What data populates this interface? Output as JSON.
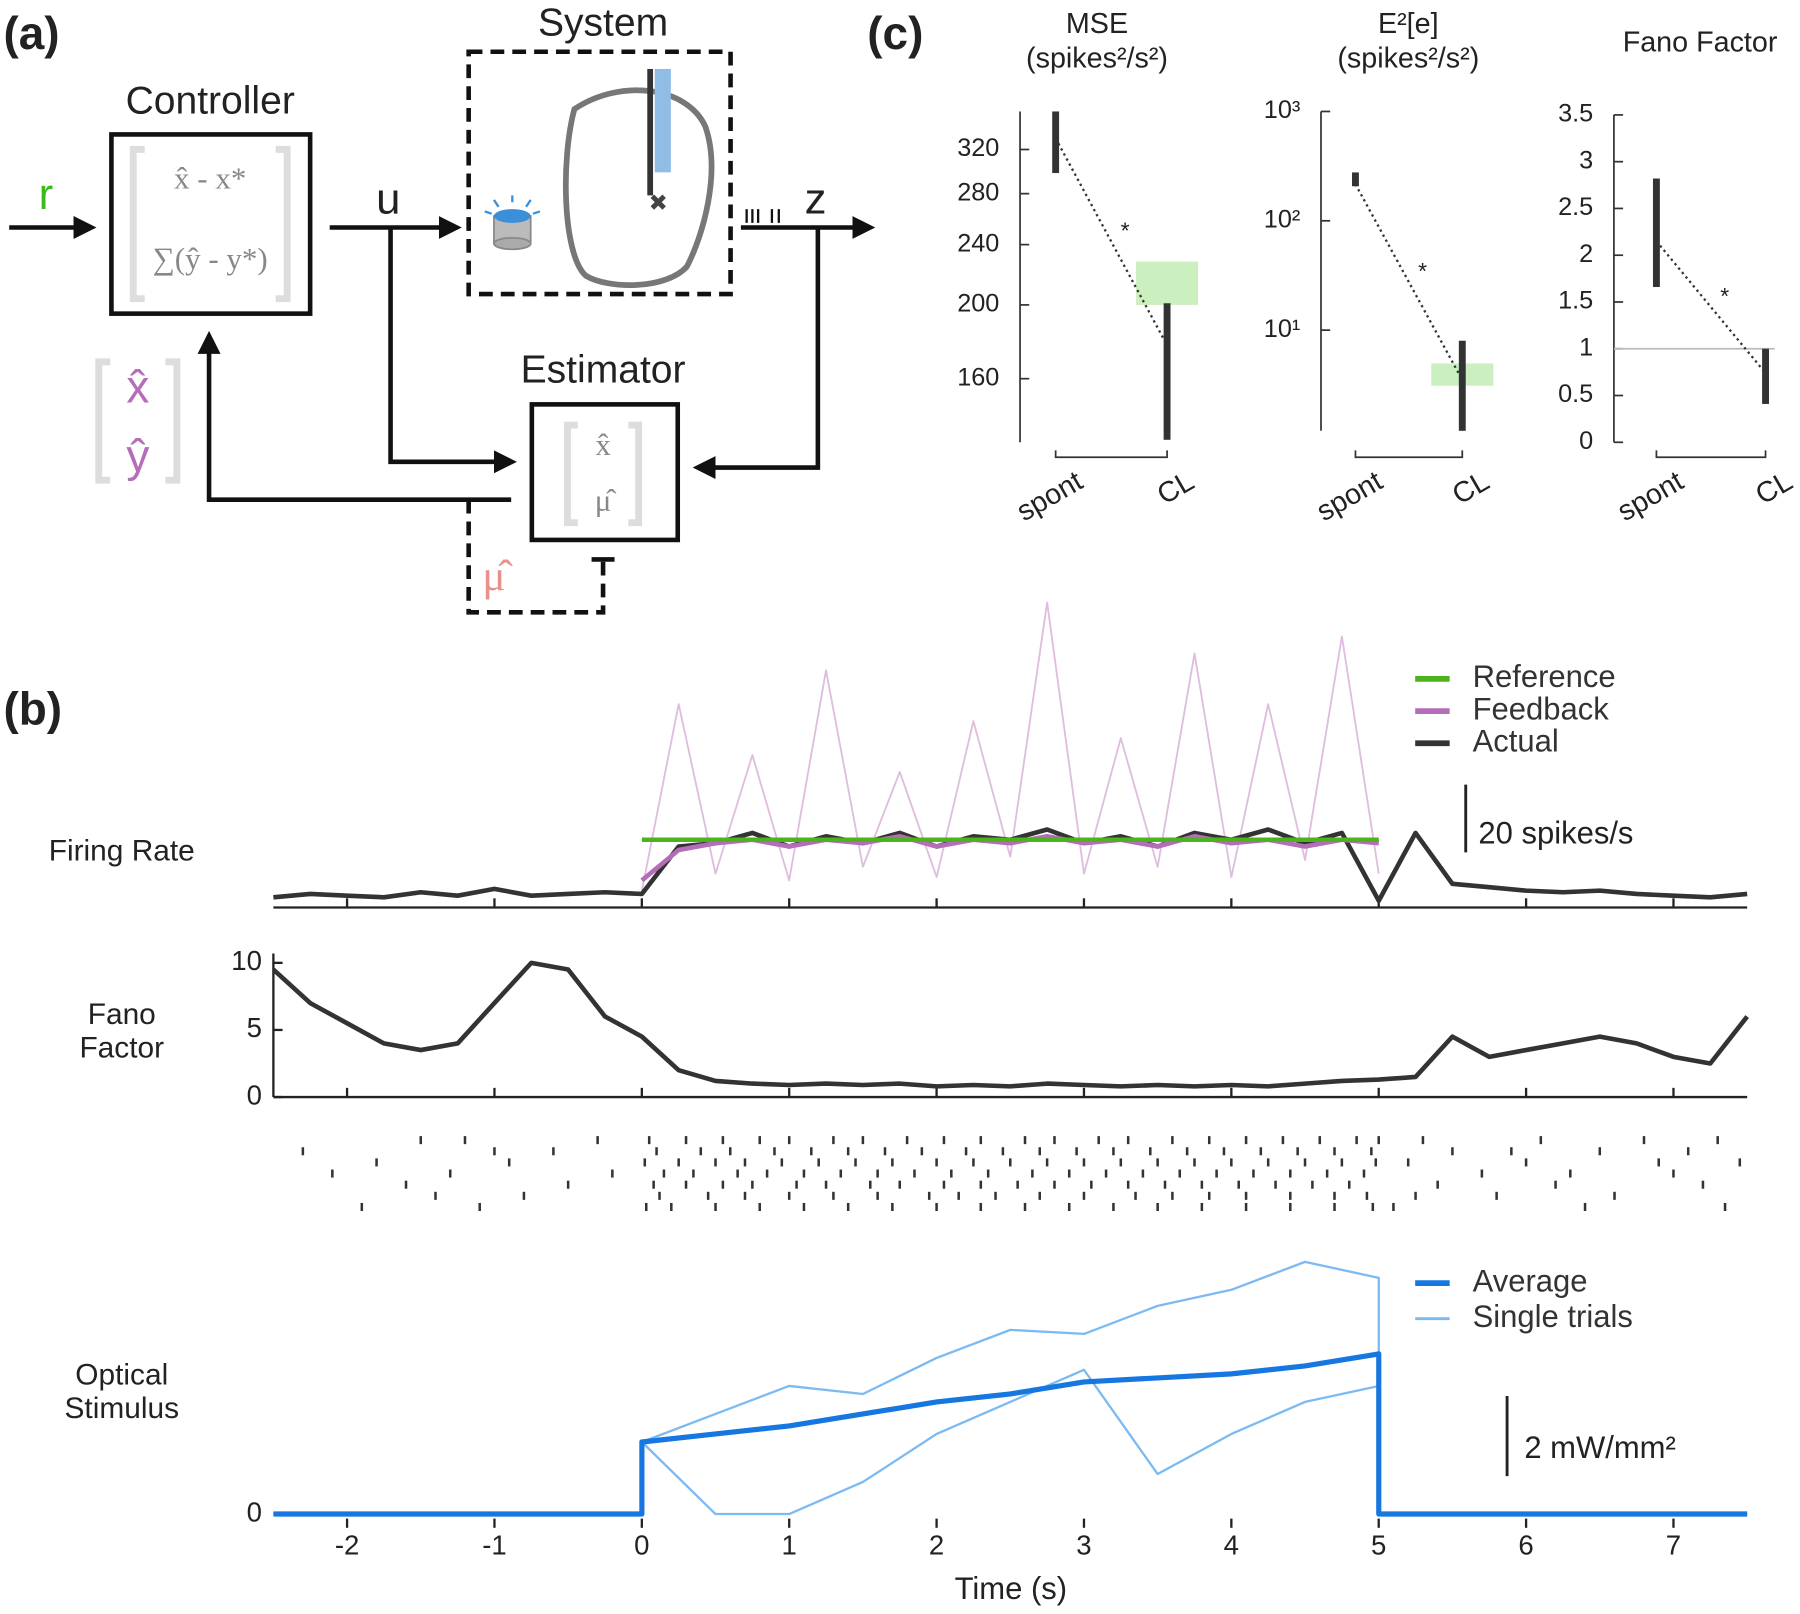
{
  "panel_labels": {
    "a": "(a)",
    "b": "(b)",
    "c": "(c)"
  },
  "diagram": {
    "controller": {
      "title": "Controller",
      "rows": [
        "x̂ - x*",
        "∑(ŷ - y*)"
      ]
    },
    "system": {
      "title": "System"
    },
    "estimator": {
      "title": "Estimator",
      "rows": [
        "x̂",
        "μ̂"
      ]
    },
    "signals": {
      "r": "r",
      "u": "u",
      "z": "z"
    },
    "state_feedback": [
      "x̂",
      "ŷ"
    ],
    "parameter_feedback": "μ̂"
  },
  "chart_data": [
    {
      "type": "line",
      "ylabel": [
        "Firing Rate"
      ],
      "legend": "upper right",
      "ylim": [
        0,
        100
      ],
      "scale_bar": {
        "value": 20,
        "label": "20 spikes/s"
      },
      "x": [
        -2.5,
        -2.25,
        -2,
        -1.75,
        -1.5,
        -1.25,
        -1,
        -0.75,
        -0.5,
        -0.25,
        0,
        0.25,
        0.5,
        0.75,
        1,
        1.25,
        1.5,
        1.75,
        2,
        2.25,
        2.5,
        2.75,
        3,
        3.25,
        3.5,
        3.75,
        4,
        4.25,
        4.5,
        4.75,
        5,
        5.25,
        5.5,
        5.75,
        6,
        6.25,
        6.5,
        6.75,
        7,
        7.25,
        7.5
      ],
      "series": [
        {
          "name": "Reference",
          "color": "#4db31c",
          "values": [
            null,
            null,
            null,
            null,
            null,
            null,
            null,
            null,
            null,
            null,
            20,
            20,
            20,
            20,
            20,
            20,
            20,
            20,
            20,
            20,
            20,
            20,
            20,
            20,
            20,
            20,
            20,
            20,
            20,
            20,
            20,
            null,
            null,
            null,
            null,
            null,
            null,
            null,
            null,
            null,
            null
          ]
        },
        {
          "name": "Feedback",
          "color": "#b56db9",
          "values": [
            null,
            null,
            null,
            null,
            null,
            null,
            null,
            null,
            null,
            null,
            8,
            17,
            19,
            20,
            18,
            20,
            19,
            21,
            18,
            20,
            19,
            21,
            19,
            20,
            18,
            21,
            19,
            20,
            18,
            20,
            19,
            null,
            null,
            null,
            null,
            null,
            null,
            null,
            null,
            null,
            null
          ],
          "trial_values": [
            null,
            null,
            null,
            null,
            null,
            null,
            null,
            null,
            null,
            null,
            5,
            60,
            10,
            45,
            8,
            70,
            12,
            40,
            9,
            55,
            15,
            90,
            10,
            50,
            12,
            75,
            9,
            60,
            14,
            80,
            10,
            null,
            null,
            null,
            null,
            null,
            null,
            null,
            null,
            null,
            null
          ]
        },
        {
          "name": "Actual",
          "color": "#333333",
          "values": [
            3,
            4,
            3.5,
            3,
            4.5,
            3.5,
            5.5,
            3.5,
            4,
            4.5,
            4,
            18,
            19,
            22,
            18,
            21,
            19,
            22,
            18,
            21,
            20,
            23,
            19,
            21,
            18,
            22,
            20,
            23,
            19,
            22,
            2,
            22,
            7,
            6,
            5,
            4.5,
            5,
            4,
            3.5,
            3,
            4
          ]
        }
      ]
    },
    {
      "type": "line",
      "ylabel": [
        "Fano",
        "Factor"
      ],
      "ylim": [
        0,
        10.7
      ],
      "yticks": [
        0,
        5,
        10
      ],
      "x": [
        -2.5,
        -2.25,
        -2,
        -1.75,
        -1.5,
        -1.25,
        -1,
        -0.75,
        -0.5,
        -0.25,
        0,
        0.25,
        0.5,
        0.75,
        1,
        1.25,
        1.5,
        1.75,
        2,
        2.25,
        2.5,
        2.75,
        3,
        3.25,
        3.5,
        3.75,
        4,
        4.25,
        4.5,
        4.75,
        5,
        5.25,
        5.5,
        5.75,
        6,
        6.25,
        6.5,
        6.75,
        7,
        7.25,
        7.5
      ],
      "series": [
        {
          "color": "#333333",
          "values": [
            9.5,
            7,
            5.5,
            4,
            3.5,
            4,
            7,
            10,
            9.5,
            6,
            4.5,
            2,
            1.2,
            1,
            0.9,
            1,
            0.9,
            1,
            0.8,
            0.9,
            0.8,
            1,
            0.9,
            0.8,
            0.9,
            0.8,
            0.9,
            0.8,
            1,
            1.2,
            1.3,
            1.5,
            4.5,
            3,
            3.5,
            4,
            4.5,
            4,
            3,
            2.5,
            6
          ]
        }
      ]
    },
    {
      "type": "raster",
      "color": "#333333",
      "trials": [
        [
          -1.5,
          -1.2,
          -0.3,
          0.05,
          0.3,
          0.55,
          0.8,
          1.0,
          1.3,
          1.5,
          1.8,
          2.05,
          2.3,
          2.6,
          2.8,
          3.1,
          3.3,
          3.6,
          3.85,
          4.1,
          4.35,
          4.6,
          4.85,
          5.0,
          5.3,
          6.1,
          6.8,
          7.3
        ],
        [
          -2.3,
          -1.0,
          -0.6,
          0.1,
          0.4,
          0.6,
          0.9,
          1.15,
          1.4,
          1.65,
          1.9,
          2.2,
          2.45,
          2.7,
          2.95,
          3.2,
          3.45,
          3.7,
          3.95,
          4.2,
          4.45,
          4.7,
          4.95,
          5.5,
          5.9,
          6.5,
          7.1
        ],
        [
          -1.8,
          -0.9,
          0.02,
          0.25,
          0.5,
          0.7,
          0.95,
          1.2,
          1.45,
          1.7,
          2.0,
          2.25,
          2.5,
          2.75,
          3.0,
          3.25,
          3.5,
          3.75,
          4.0,
          4.25,
          4.5,
          4.75,
          4.98,
          5.2,
          6.0,
          6.9,
          7.45
        ],
        [
          -2.1,
          -1.3,
          -0.2,
          0.15,
          0.35,
          0.65,
          0.85,
          1.1,
          1.35,
          1.6,
          1.85,
          2.1,
          2.35,
          2.65,
          2.9,
          3.15,
          3.4,
          3.65,
          3.9,
          4.15,
          4.4,
          4.65,
          4.9,
          5.7,
          6.3,
          7.0
        ],
        [
          -1.6,
          -0.5,
          0.08,
          0.3,
          0.55,
          0.75,
          1.05,
          1.25,
          1.55,
          1.75,
          2.05,
          2.3,
          2.55,
          2.8,
          3.05,
          3.3,
          3.55,
          3.8,
          4.05,
          4.3,
          4.55,
          4.8,
          5.4,
          6.2,
          7.2
        ],
        [
          -1.4,
          -0.8,
          0.12,
          0.45,
          0.7,
          1.0,
          1.3,
          1.6,
          1.95,
          2.15,
          2.4,
          2.7,
          3.0,
          3.35,
          3.6,
          3.85,
          4.1,
          4.4,
          4.7,
          4.92,
          5.25,
          5.8,
          6.6
        ],
        [
          -1.9,
          -1.1,
          0.03,
          0.2,
          0.5,
          0.8,
          1.1,
          1.4,
          1.7,
          2.0,
          2.3,
          2.6,
          2.9,
          3.2,
          3.5,
          3.8,
          4.1,
          4.4,
          4.7,
          4.96,
          5.1,
          6.4,
          7.35
        ]
      ]
    },
    {
      "type": "line",
      "ylabel": [
        "Optical",
        "Stimulus"
      ],
      "xlabel": "Time (s)",
      "legend": "upper right",
      "xlim": [
        -2.5,
        7.5
      ],
      "xticks": [
        -2,
        -1,
        0,
        1,
        2,
        3,
        4,
        5,
        6,
        7
      ],
      "ylim": [
        0,
        6.6
      ],
      "yticks": [
        0
      ],
      "scale_bar": {
        "value": 2,
        "label": "2 mW/mm²"
      },
      "x": [
        -2.5,
        -1,
        0,
        0,
        0.5,
        1,
        1.5,
        2,
        2.5,
        3,
        3.5,
        4,
        4.5,
        5,
        5,
        6,
        7.5
      ],
      "series": [
        {
          "name": "Average",
          "color": "#1677e0",
          "values": [
            0,
            0,
            0,
            1.8,
            2.0,
            2.2,
            2.5,
            2.8,
            3.0,
            3.3,
            3.4,
            3.5,
            3.7,
            4.0,
            0,
            0,
            0
          ]
        },
        {
          "name": "Single trials",
          "color": "#7cbaf2",
          "trial_values": [
            [
              0,
              0,
              0,
              1.8,
              2.5,
              3.2,
              3.0,
              3.9,
              4.6,
              4.5,
              5.2,
              5.6,
              6.3,
              5.9,
              0,
              0,
              0
            ],
            [
              0,
              0,
              0,
              1.8,
              0,
              0,
              0.8,
              2.0,
              2.8,
              3.6,
              1.0,
              2.0,
              2.8,
              3.2,
              0,
              0,
              0
            ]
          ]
        }
      ]
    },
    {
      "type": "interval",
      "title": [
        "MSE",
        "(spikes²/s²)"
      ],
      "categories": [
        "spont",
        "CL"
      ],
      "log_scale": true,
      "ylim": [
        132,
        359
      ],
      "yticks": [
        160,
        200,
        240,
        280,
        320
      ],
      "values": [
        331,
        177
      ],
      "lower": [
        298,
        133
      ],
      "upper": [
        359,
        201
      ],
      "target_low": [
        null,
        200
      ],
      "target_high": [
        null,
        228
      ],
      "target_color": "#ccefbf",
      "annotation": "*"
    },
    {
      "type": "interval",
      "title": [
        "E²[e]",
        "(spikes²/s²)"
      ],
      "categories": [
        "spont",
        "CL"
      ],
      "log_scale": true,
      "ylim": [
        1.2,
        1000
      ],
      "yticks": [
        {
          "value": 10,
          "label": "10¹"
        },
        {
          "value": 100,
          "label": "10²"
        },
        {
          "value": 1000,
          "label": "10³"
        }
      ],
      "values": [
        216,
        3.5
      ],
      "lower": [
        207,
        1.2
      ],
      "upper": [
        277,
        8.0
      ],
      "target_low": [
        null,
        3.1
      ],
      "target_high": [
        null,
        4.96
      ],
      "target_color": "#ccefbf",
      "annotation": "*"
    },
    {
      "type": "interval",
      "title": [
        "Fano Factor"
      ],
      "categories": [
        "spont",
        "CL"
      ],
      "log_scale": false,
      "ylim": [
        0,
        3.5
      ],
      "yticks": [
        0,
        0.5,
        1,
        1.5,
        2,
        2.5,
        3,
        3.5
      ],
      "values": [
        2.15,
        0.74
      ],
      "lower": [
        1.66,
        0.41
      ],
      "upper": [
        2.82,
        1.0
      ],
      "reference_line": 1,
      "annotation": "*"
    }
  ]
}
